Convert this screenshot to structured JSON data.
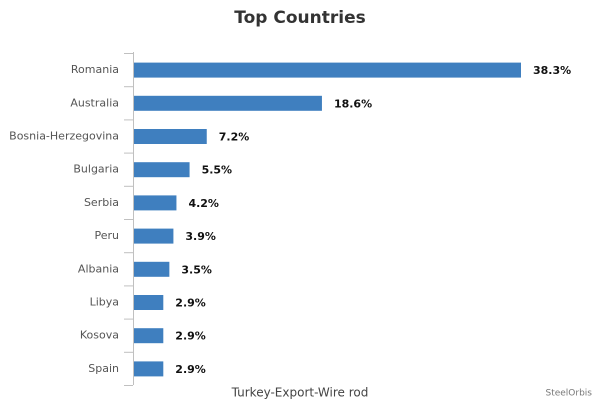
{
  "chart_data": {
    "type": "bar",
    "orientation": "horizontal",
    "title": "Top Countries",
    "x_label": "Turkey-Export-Wire rod",
    "credit": "SteelOrbis",
    "categories": [
      "Romania",
      "Australia",
      "Bosnia-Herzegovina",
      "Bulgaria",
      "Serbia",
      "Peru",
      "Albania",
      "Libya",
      "Kosova",
      "Spain"
    ],
    "values": [
      38.3,
      18.6,
      7.2,
      5.5,
      4.2,
      3.9,
      3.5,
      2.9,
      2.9,
      2.9
    ],
    "value_labels": [
      "38.3%",
      "18.6%",
      "7.2%",
      "5.5%",
      "4.2%",
      "3.9%",
      "3.5%",
      "2.9%",
      "2.9%",
      "2.9%"
    ],
    "color": "#3f7fbf"
  }
}
